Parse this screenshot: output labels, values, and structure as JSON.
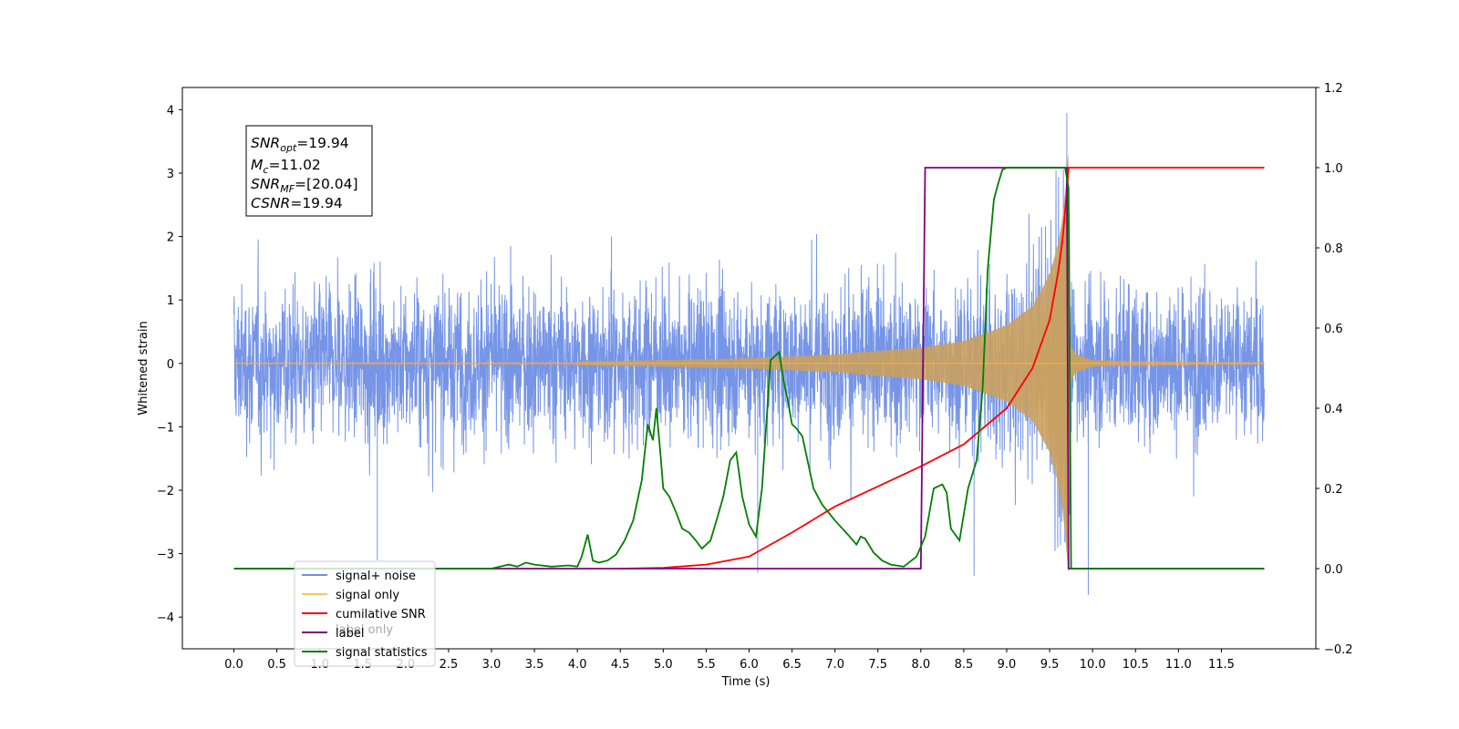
{
  "chart_data": {
    "type": "line",
    "xlabel": "Time (s)",
    "ylabel": "Whitened strain",
    "xlim": [
      -0.6,
      12.6
    ],
    "ylim": [
      -4.5,
      4.35
    ],
    "ylim_right": [
      -0.2,
      1.2
    ],
    "x_ticks": [
      "0.0",
      "0.5",
      "1.0",
      "1.5",
      "2.0",
      "2.5",
      "3.0",
      "3.5",
      "4.0",
      "4.5",
      "5.0",
      "5.5",
      "6.0",
      "6.5",
      "7.0",
      "7.5",
      "8.0",
      "8.5",
      "9.0",
      "9.5",
      "10.0",
      "10.5",
      "11.0",
      "11.5"
    ],
    "y_ticks": [
      "4",
      "3",
      "2",
      "1",
      "0",
      "−1",
      "−2",
      "−3",
      "−4"
    ],
    "y_ticks_right": [
      "1.2",
      "1.0",
      "0.8",
      "0.6",
      "0.4",
      "0.2",
      "0.0",
      "−0.2"
    ],
    "grid": false,
    "legend_position": "lower-left",
    "stats_box": {
      "snr_opt": "SNR",
      "snr_opt_sub": "opt",
      "snr_opt_value": "=19.94",
      "mc": "M",
      "mc_sub": "c",
      "mc_value": "=11.02",
      "snr_mf": "SNR",
      "snr_mf_sub": "MF",
      "snr_mf_value": "=[20.04]",
      "csnr": "CSNR",
      "csnr_value": "=19.94"
    },
    "noise_series": {
      "name": "signal+ noise",
      "color": "#6f8fe6",
      "x_range": [
        0.0,
        12.0
      ],
      "typical_amplitude": 1.5,
      "spikes": [
        {
          "x": 1.67,
          "y": -3.1
        },
        {
          "x": 6.1,
          "y": -3.3
        },
        {
          "x": 8.62,
          "y": -3.35
        },
        {
          "x": 9.7,
          "y": 3.95
        },
        {
          "x": 9.72,
          "y": -3.25
        },
        {
          "x": 9.95,
          "y": -3.65
        }
      ]
    },
    "signal_series": {
      "name": "signal only",
      "color": "#ffa520",
      "chirp_end": 9.72,
      "envelope": [
        [
          0,
          0.01
        ],
        [
          2,
          0.02
        ],
        [
          4,
          0.03
        ],
        [
          5,
          0.05
        ],
        [
          6,
          0.08
        ],
        [
          7,
          0.14
        ],
        [
          8,
          0.25
        ],
        [
          8.5,
          0.35
        ],
        [
          9,
          0.6
        ],
        [
          9.3,
          0.9
        ],
        [
          9.5,
          1.4
        ],
        [
          9.6,
          1.9
        ],
        [
          9.65,
          2.3
        ],
        [
          9.7,
          3.0
        ],
        [
          9.72,
          3.45
        ],
        [
          9.74,
          0.3
        ],
        [
          9.8,
          0.15
        ],
        [
          10,
          0.05
        ],
        [
          12,
          0.01
        ]
      ]
    },
    "series": [
      {
        "name": "cumilative SNR",
        "color": "#ff0000",
        "axis": "right",
        "x": [
          4.5,
          5.0,
          5.5,
          6.0,
          6.5,
          7.0,
          7.5,
          8.0,
          8.5,
          9.0,
          9.3,
          9.5,
          9.6,
          9.65,
          9.7,
          9.72,
          12.0
        ],
        "y": [
          0.0,
          0.002,
          0.01,
          0.03,
          0.09,
          0.155,
          0.205,
          0.255,
          0.31,
          0.4,
          0.5,
          0.62,
          0.74,
          0.82,
          0.94,
          1.0,
          1.0
        ]
      },
      {
        "name": "label",
        "color": "#800080",
        "axis": "right",
        "x": [
          0.0,
          8.0,
          8.05,
          9.7,
          9.72,
          12.0
        ],
        "y": [
          0.0,
          0.0,
          1.0,
          1.0,
          0.0,
          0.0
        ]
      },
      {
        "name": "signal statistics",
        "color": "#008000",
        "axis": "right",
        "x": [
          0.0,
          3.0,
          3.1,
          3.2,
          3.3,
          3.4,
          3.5,
          3.7,
          3.9,
          4.0,
          4.05,
          4.12,
          4.18,
          4.25,
          4.35,
          4.45,
          4.55,
          4.65,
          4.75,
          4.82,
          4.88,
          4.92,
          4.97,
          5.0,
          5.07,
          5.15,
          5.22,
          5.3,
          5.38,
          5.45,
          5.55,
          5.62,
          5.7,
          5.78,
          5.85,
          5.92,
          6.0,
          6.08,
          6.15,
          6.25,
          6.35,
          6.4,
          6.45,
          6.5,
          6.55,
          6.62,
          6.68,
          6.75,
          6.85,
          7.0,
          7.15,
          7.25,
          7.3,
          7.35,
          7.45,
          7.55,
          7.65,
          7.8,
          7.95,
          8.05,
          8.15,
          8.25,
          8.3,
          8.35,
          8.45,
          8.55,
          8.65,
          8.72,
          8.78,
          8.85,
          8.9,
          8.95,
          9.0,
          9.1,
          9.3,
          9.6,
          9.68,
          9.72,
          9.75,
          12.0
        ],
        "y": [
          0.0,
          0.0,
          0.005,
          0.01,
          0.005,
          0.015,
          0.01,
          0.005,
          0.008,
          0.005,
          0.03,
          0.085,
          0.02,
          0.015,
          0.02,
          0.035,
          0.07,
          0.12,
          0.22,
          0.36,
          0.32,
          0.4,
          0.28,
          0.2,
          0.18,
          0.14,
          0.1,
          0.09,
          0.07,
          0.05,
          0.07,
          0.12,
          0.18,
          0.27,
          0.29,
          0.18,
          0.11,
          0.08,
          0.2,
          0.52,
          0.54,
          0.47,
          0.42,
          0.36,
          0.35,
          0.33,
          0.27,
          0.2,
          0.16,
          0.12,
          0.085,
          0.06,
          0.08,
          0.075,
          0.04,
          0.02,
          0.01,
          0.005,
          0.03,
          0.08,
          0.2,
          0.21,
          0.19,
          0.1,
          0.07,
          0.2,
          0.27,
          0.45,
          0.75,
          0.92,
          0.96,
          0.995,
          1.0,
          1.0,
          1.0,
          1.0,
          1.0,
          0.95,
          0.0,
          0.0
        ]
      }
    ],
    "legend": [
      {
        "label": "signal+ noise",
        "color": "#6f8fe6"
      },
      {
        "label": "signal only",
        "color": "#ffc266"
      },
      {
        "label": "cumilative SNR",
        "color": "#ff0000"
      },
      {
        "label": "label",
        "color": "#800080"
      },
      {
        "label": "label only",
        "color": "#800080"
      },
      {
        "label": "signal statistics",
        "color": "#008000"
      }
    ]
  }
}
